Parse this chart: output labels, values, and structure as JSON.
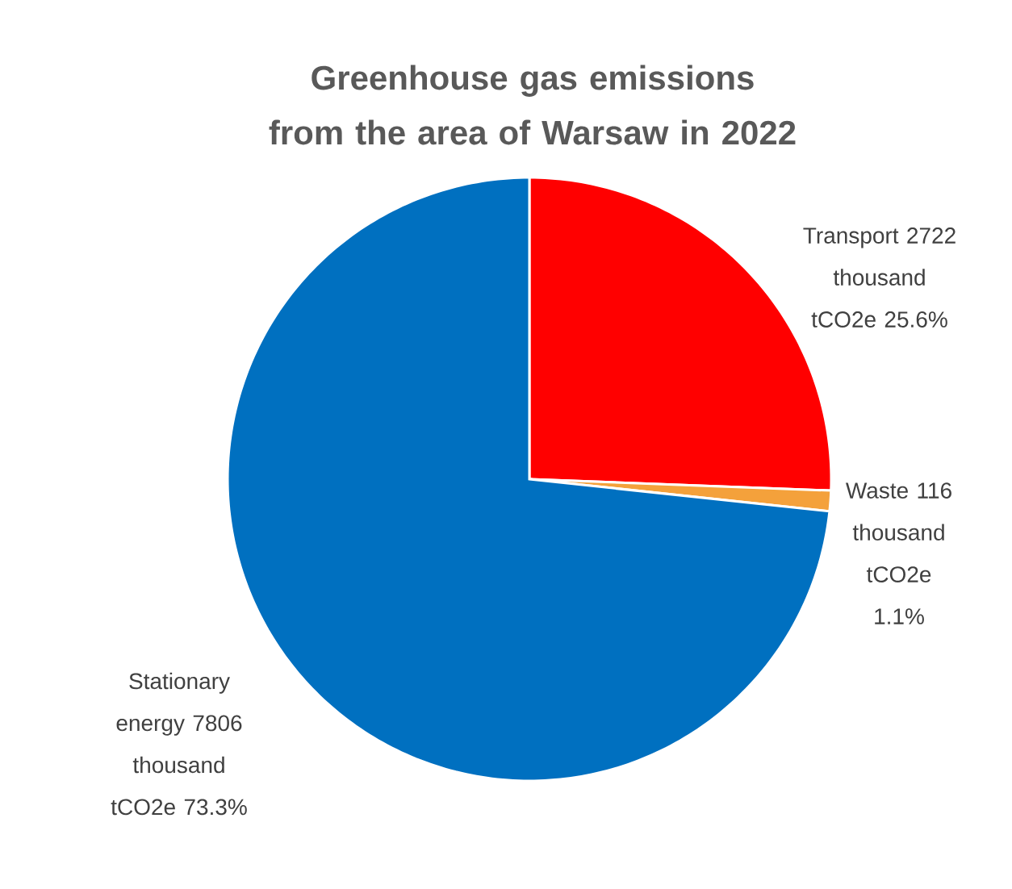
{
  "chart_data": {
    "type": "pie",
    "title": "Greenhouse gas emissions from the area of Warsaw in 2022",
    "categories": [
      "Transport",
      "Waste",
      "Stationary energy"
    ],
    "values": [
      25.6,
      1.1,
      73.3
    ],
    "colors": [
      "#ff0000",
      "#f4a13b",
      "#0070c0"
    ],
    "value_labels": [
      "2722 thousand tCO2e 25.6%",
      "116 thousand tCO2e 1.1%",
      "7806 thousand tCO2e 73.3%"
    ],
    "legend": false
  }
}
